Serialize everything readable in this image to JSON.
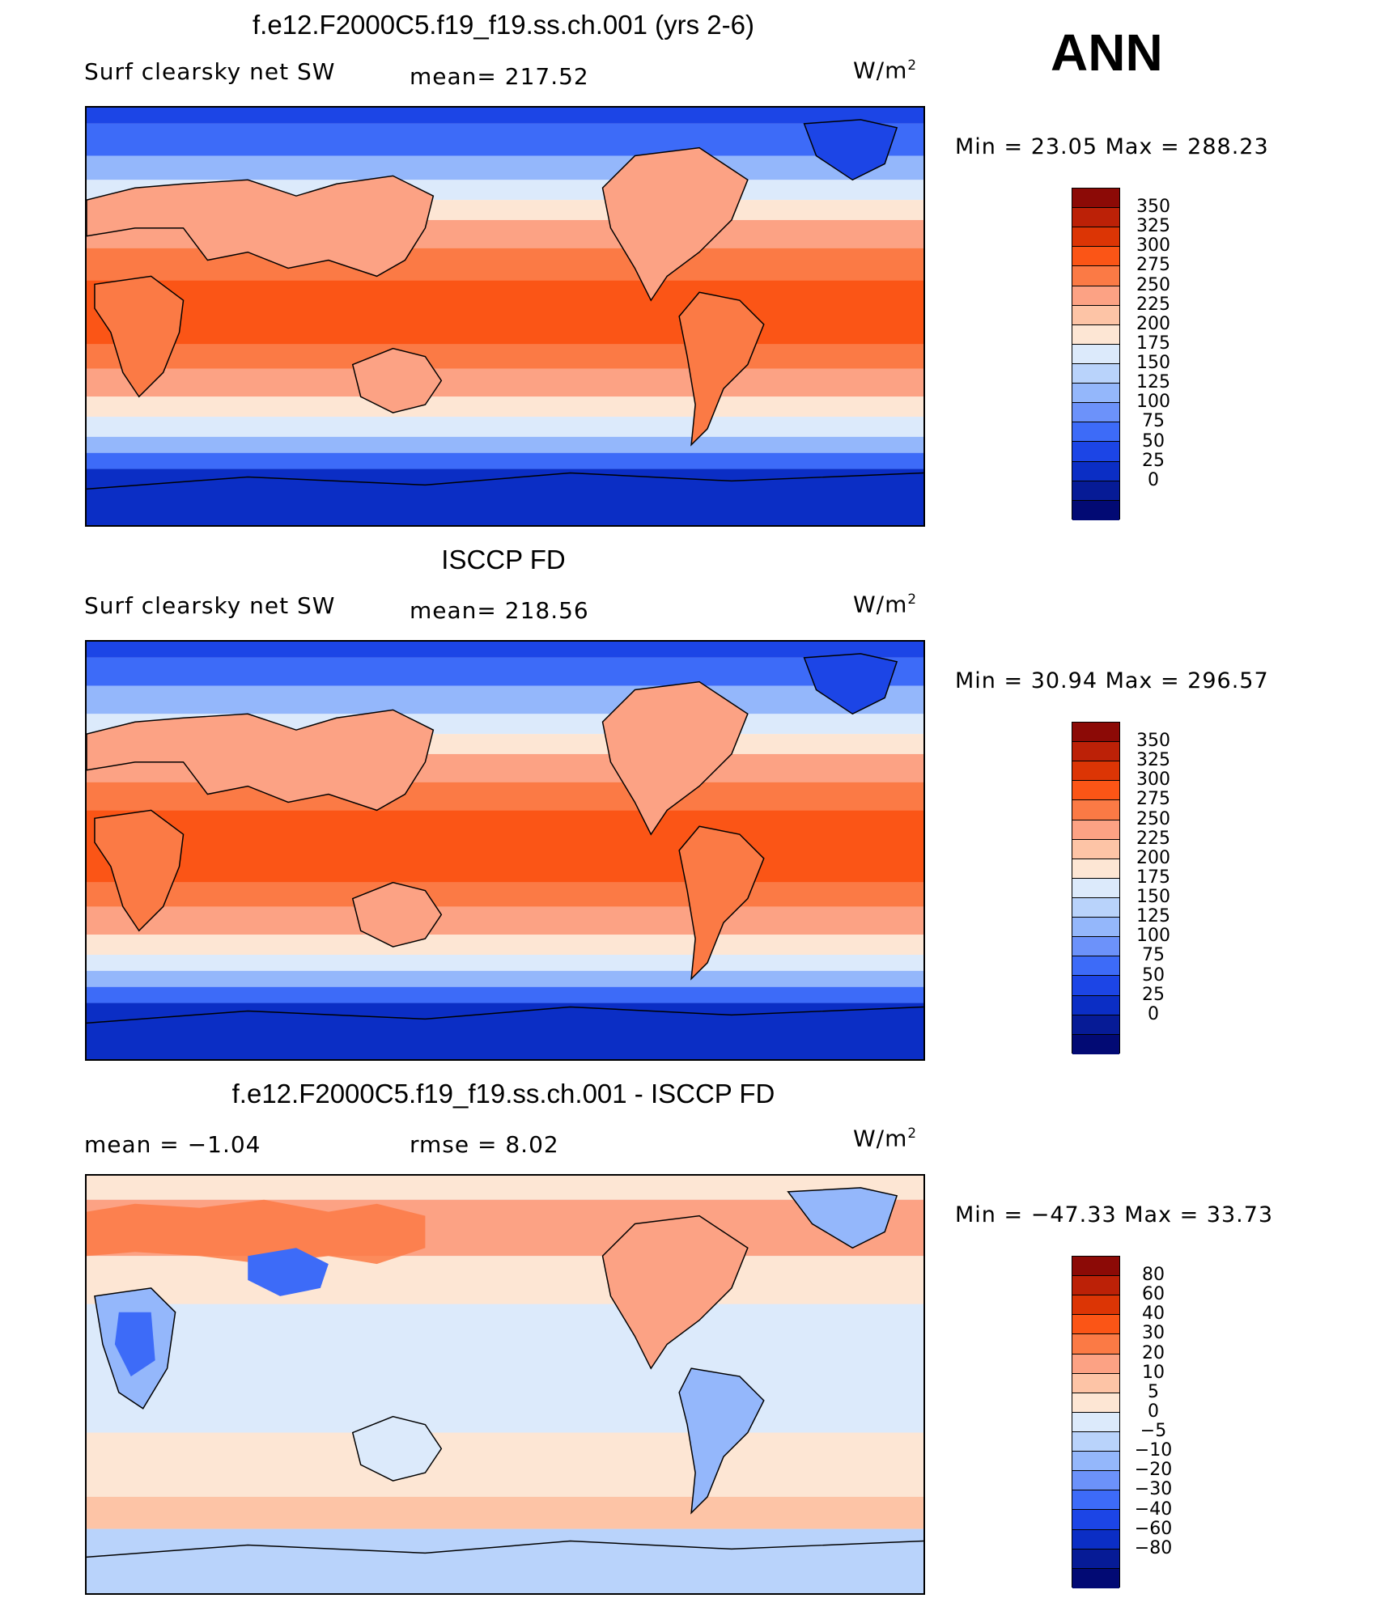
{
  "season": "ANN",
  "panels": [
    {
      "title": "f.e12.F2000C5.f19_f19.ss.ch.001 (yrs 2-6)",
      "left_label": "Surf  clearsky  net  SW",
      "mid_label": "mean=  217.52",
      "units": "W/m",
      "units_sup": "2",
      "minmax": "Min  =    23.05  Max  =  288.23",
      "colorbar_labels": [
        "350",
        "325",
        "300",
        "275",
        "250",
        "225",
        "200",
        "175",
        "150",
        "125",
        "100",
        "75",
        "50",
        "25",
        "0"
      ],
      "colorbar_colors": [
        "#8c0a06",
        "#bc2107",
        "#dc3505",
        "#fb5516",
        "#fb7a45",
        "#fca284",
        "#fdc4a6",
        "#fde6d4",
        "#dceafb",
        "#b9d3fb",
        "#94b7fb",
        "#6c92fa",
        "#3d6bf8",
        "#1c45e6",
        "#0b2ec5",
        "#061b96",
        "#020a74"
      ]
    },
    {
      "title": "ISCCP FD",
      "left_label": "Surf  clearsky  net  SW",
      "mid_label": "mean=  218.56",
      "units": "W/m",
      "units_sup": "2",
      "minmax": "Min  =    30.94  Max  =  296.57",
      "colorbar_labels": [
        "350",
        "325",
        "300",
        "275",
        "250",
        "225",
        "200",
        "175",
        "150",
        "125",
        "100",
        "75",
        "50",
        "25",
        "0"
      ],
      "colorbar_colors": [
        "#8c0a06",
        "#bc2107",
        "#dc3505",
        "#fb5516",
        "#fb7a45",
        "#fca284",
        "#fdc4a6",
        "#fde6d4",
        "#dceafb",
        "#b9d3fb",
        "#94b7fb",
        "#6c92fa",
        "#3d6bf8",
        "#1c45e6",
        "#0b2ec5",
        "#061b96",
        "#020a74"
      ]
    },
    {
      "title": "f.e12.F2000C5.f19_f19.ss.ch.001 - ISCCP FD",
      "left_label": "mean  =     −1.04",
      "mid_label": "rmse  =      8.02",
      "units": "W/m",
      "units_sup": "2",
      "minmax": "Min  =  −47.33  Max  =     33.73",
      "colorbar_labels": [
        "80",
        "60",
        "40",
        "30",
        "20",
        "10",
        "5",
        "0",
        "−5",
        "−10",
        "−20",
        "−30",
        "−40",
        "−60",
        "−80"
      ],
      "colorbar_colors": [
        "#8c0a06",
        "#bc2107",
        "#dc3505",
        "#fb5516",
        "#fb7a45",
        "#fca284",
        "#fdc4a6",
        "#fde6d4",
        "#dceafb",
        "#b9d3fb",
        "#94b7fb",
        "#6c92fa",
        "#3d6bf8",
        "#1c45e6",
        "#0b2ec5",
        "#061b96",
        "#020a74"
      ]
    }
  ]
}
